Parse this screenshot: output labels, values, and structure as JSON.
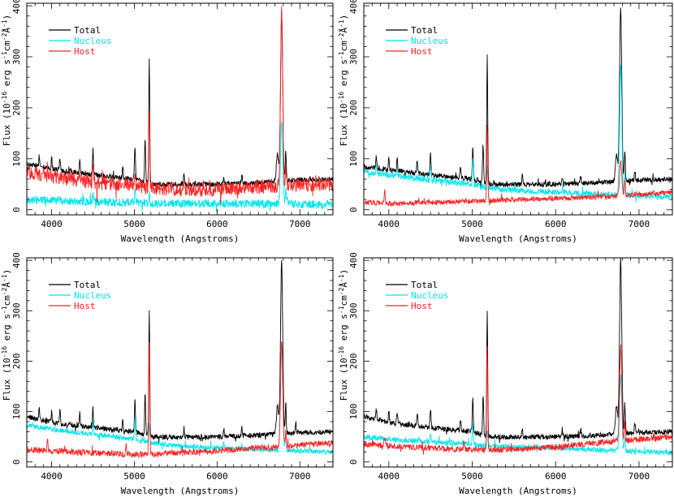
{
  "figure": {
    "background": "#ffffff",
    "colors": {
      "total": "#000000",
      "nucleus": "#00e5ee",
      "host": "#ff2020"
    }
  },
  "chart_data": [
    {
      "type": "line",
      "panel": "top-left",
      "xlabel": "Wavelength (Angstroms)",
      "ylabel": "Flux (10^-16 erg s^-1 cm^-2 Å^-1)",
      "xlim": [
        3700,
        7400
      ],
      "ylim": [
        -10,
        405
      ],
      "xticks": [
        4000,
        5000,
        6000,
        7000
      ],
      "yticks": [
        0,
        100,
        200,
        300,
        400
      ],
      "legend": "top-left",
      "series": [
        {
          "name": "Total",
          "color": "#000000",
          "continuum": [
            [
              3700,
              90
            ],
            [
              4000,
              80
            ],
            [
              4500,
              68
            ],
            [
              5000,
              60
            ],
            [
              5200,
              50
            ],
            [
              5500,
              49
            ],
            [
              6000,
              50
            ],
            [
              6500,
              53
            ],
            [
              6700,
              56
            ],
            [
              7000,
              58
            ],
            [
              7400,
              60
            ]
          ],
          "lines": [
            [
              3850,
              20
            ],
            [
              4000,
              22
            ],
            [
              4100,
              25
            ],
            [
              4340,
              28
            ],
            [
              4500,
              50
            ],
            [
              4860,
              22
            ],
            [
              5007,
              65
            ],
            [
              5130,
              85
            ],
            [
              5180,
              245
            ],
            [
              5600,
              20
            ],
            [
              6080,
              15
            ],
            [
              6300,
              18
            ],
            [
              6730,
              55
            ],
            [
              6780,
              330
            ],
            [
              6830,
              60
            ]
          ],
          "noise": 5
        },
        {
          "name": "Nucleus",
          "color": "#00e5ee",
          "continuum": [
            [
              3700,
              20
            ],
            [
              4000,
              18
            ],
            [
              4500,
              16
            ],
            [
              5000,
              14
            ],
            [
              5500,
              12
            ],
            [
              6000,
              12
            ],
            [
              6500,
              12
            ],
            [
              7000,
              11
            ],
            [
              7400,
              10
            ]
          ],
          "lines": [
            [
              4500,
              15
            ],
            [
              5007,
              25
            ],
            [
              5180,
              20
            ],
            [
              6780,
              160
            ],
            [
              6830,
              30
            ]
          ],
          "noise": 8
        },
        {
          "name": "Host",
          "color": "#ff2020",
          "continuum": [
            [
              3700,
              75
            ],
            [
              4000,
              65
            ],
            [
              4500,
              55
            ],
            [
              5000,
              48
            ],
            [
              5200,
              42
            ],
            [
              5500,
              40
            ],
            [
              6000,
              40
            ],
            [
              6500,
              45
            ],
            [
              6700,
              47
            ],
            [
              7000,
              49
            ],
            [
              7400,
              50
            ]
          ],
          "lines": [
            [
              4500,
              25
            ],
            [
              5007,
              30
            ],
            [
              5180,
              155
            ],
            [
              5600,
              20
            ],
            [
              6780,
              340
            ],
            [
              6830,
              40
            ]
          ],
          "noise": 14
        }
      ]
    },
    {
      "type": "line",
      "panel": "top-right",
      "xlabel": "Wavelength (Angstroms)",
      "ylabel": "Flux (10^-16 erg s^-1 cm^-2 Å^-1)",
      "xlim": [
        3700,
        7400
      ],
      "ylim": [
        -10,
        405
      ],
      "xticks": [
        4000,
        5000,
        6000,
        7000
      ],
      "yticks": [
        0,
        100,
        200,
        300,
        400
      ],
      "legend": "top-left",
      "series": [
        {
          "name": "Total",
          "color": "#000000",
          "continuum": [
            [
              3700,
              85
            ],
            [
              4000,
              78
            ],
            [
              4500,
              68
            ],
            [
              5000,
              60
            ],
            [
              5200,
              50
            ],
            [
              5500,
              49
            ],
            [
              6000,
              50
            ],
            [
              6500,
              53
            ],
            [
              7000,
              58
            ],
            [
              7400,
              60
            ]
          ],
          "lines": [
            [
              3850,
              25
            ],
            [
              4000,
              22
            ],
            [
              4100,
              25
            ],
            [
              4340,
              25
            ],
            [
              4500,
              40
            ],
            [
              4860,
              20
            ],
            [
              5007,
              65
            ],
            [
              5130,
              80
            ],
            [
              5180,
              250
            ],
            [
              5600,
              18
            ],
            [
              6080,
              15
            ],
            [
              6300,
              18
            ],
            [
              6730,
              55
            ],
            [
              6780,
              345
            ],
            [
              6830,
              60
            ],
            [
              6950,
              20
            ]
          ],
          "noise": 5
        },
        {
          "name": "Nucleus",
          "color": "#00e5ee",
          "continuum": [
            [
              3700,
              75
            ],
            [
              4000,
              68
            ],
            [
              4500,
              58
            ],
            [
              5000,
              50
            ],
            [
              5200,
              42
            ],
            [
              5500,
              38
            ],
            [
              6000,
              35
            ],
            [
              6500,
              30
            ],
            [
              7000,
              28
            ],
            [
              7400,
              25
            ]
          ],
          "lines": [
            [
              3850,
              15
            ],
            [
              4100,
              10
            ],
            [
              4500,
              30
            ],
            [
              5007,
              50
            ],
            [
              5180,
              40
            ],
            [
              6080,
              12
            ],
            [
              6780,
              255
            ],
            [
              6830,
              40
            ]
          ],
          "noise": 6
        },
        {
          "name": "Host",
          "color": "#ff2020",
          "continuum": [
            [
              3700,
              15
            ],
            [
              4000,
              12
            ],
            [
              4500,
              14
            ],
            [
              5000,
              17
            ],
            [
              5200,
              18
            ],
            [
              5500,
              20
            ],
            [
              6000,
              22
            ],
            [
              6500,
              25
            ],
            [
              7000,
              30
            ],
            [
              7400,
              35
            ]
          ],
          "lines": [
            [
              3950,
              25
            ],
            [
              5180,
              150
            ],
            [
              6780,
              70
            ],
            [
              6830,
              30
            ]
          ],
          "noise": 5
        }
      ]
    },
    {
      "type": "line",
      "panel": "bottom-left",
      "xlabel": "Wavelength (Angstroms)",
      "ylabel": "Flux (10^-16 erg s^-1 cm^-2 Å^-1)",
      "xlim": [
        3700,
        7400
      ],
      "ylim": [
        -10,
        405
      ],
      "xticks": [
        4000,
        5000,
        6000,
        7000
      ],
      "yticks": [
        0,
        100,
        200,
        300,
        400
      ],
      "legend": "top-left",
      "series": [
        {
          "name": "Total",
          "color": "#000000",
          "continuum": [
            [
              3700,
              90
            ],
            [
              4000,
              78
            ],
            [
              4500,
              68
            ],
            [
              5000,
              60
            ],
            [
              5200,
              50
            ],
            [
              5500,
              49
            ],
            [
              6000,
              50
            ],
            [
              6500,
              53
            ],
            [
              7000,
              58
            ],
            [
              7400,
              60
            ]
          ],
          "lines": [
            [
              3850,
              20
            ],
            [
              4000,
              22
            ],
            [
              4100,
              25
            ],
            [
              4340,
              25
            ],
            [
              4500,
              40
            ],
            [
              4860,
              20
            ],
            [
              5007,
              65
            ],
            [
              5130,
              80
            ],
            [
              5180,
              250
            ],
            [
              5600,
              18
            ],
            [
              6080,
              15
            ],
            [
              6300,
              18
            ],
            [
              6730,
              55
            ],
            [
              6780,
              345
            ],
            [
              6830,
              60
            ],
            [
              6950,
              20
            ]
          ],
          "noise": 5
        },
        {
          "name": "Nucleus",
          "color": "#00e5ee",
          "continuum": [
            [
              3700,
              72
            ],
            [
              4000,
              65
            ],
            [
              4500,
              55
            ],
            [
              5000,
              45
            ],
            [
              5200,
              38
            ],
            [
              5500,
              32
            ],
            [
              6000,
              28
            ],
            [
              6500,
              25
            ],
            [
              7000,
              22
            ],
            [
              7400,
              20
            ]
          ],
          "lines": [
            [
              4500,
              25
            ],
            [
              5007,
              45
            ],
            [
              5180,
              35
            ],
            [
              6080,
              10
            ],
            [
              6780,
              220
            ],
            [
              6830,
              35
            ]
          ],
          "noise": 5
        },
        {
          "name": "Host",
          "color": "#ff2020",
          "continuum": [
            [
              3700,
              25
            ],
            [
              4000,
              22
            ],
            [
              4500,
              18
            ],
            [
              5000,
              15
            ],
            [
              5200,
              15
            ],
            [
              5500,
              18
            ],
            [
              6000,
              22
            ],
            [
              6500,
              28
            ],
            [
              7000,
              33
            ],
            [
              7400,
              38
            ]
          ],
          "lines": [
            [
              3950,
              20
            ],
            [
              4900,
              20
            ],
            [
              5180,
              220
            ],
            [
              6780,
              210
            ],
            [
              6830,
              30
            ]
          ],
          "noise": 6
        }
      ]
    },
    {
      "type": "line",
      "panel": "bottom-right",
      "xlabel": "Wavelength (Angstroms)",
      "ylabel": "Flux (10^-16 erg s^-1 cm^-2 Å^-1)",
      "xlim": [
        3700,
        7400
      ],
      "ylim": [
        -10,
        405
      ],
      "xticks": [
        4000,
        5000,
        6000,
        7000
      ],
      "yticks": [
        0,
        100,
        200,
        300,
        400
      ],
      "legend": "top-left",
      "series": [
        {
          "name": "Total",
          "color": "#000000",
          "continuum": [
            [
              3700,
              90
            ],
            [
              4000,
              78
            ],
            [
              4500,
              68
            ],
            [
              5000,
              60
            ],
            [
              5200,
              50
            ],
            [
              5500,
              49
            ],
            [
              6000,
              50
            ],
            [
              6500,
              53
            ],
            [
              7000,
              58
            ],
            [
              7400,
              60
            ]
          ],
          "lines": [
            [
              3850,
              20
            ],
            [
              4000,
              22
            ],
            [
              4100,
              25
            ],
            [
              4340,
              25
            ],
            [
              4500,
              40
            ],
            [
              4860,
              20
            ],
            [
              5007,
              65
            ],
            [
              5130,
              80
            ],
            [
              5180,
              250
            ],
            [
              5600,
              18
            ],
            [
              6080,
              15
            ],
            [
              6300,
              18
            ],
            [
              6730,
              55
            ],
            [
              6780,
              345
            ],
            [
              6830,
              60
            ],
            [
              6950,
              20
            ]
          ],
          "noise": 5
        },
        {
          "name": "Nucleus",
          "color": "#00e5ee",
          "continuum": [
            [
              3700,
              50
            ],
            [
              4000,
              45
            ],
            [
              4500,
              40
            ],
            [
              5000,
              35
            ],
            [
              5200,
              32
            ],
            [
              5500,
              30
            ],
            [
              6000,
              28
            ],
            [
              6500,
              24
            ],
            [
              7000,
              20
            ],
            [
              7400,
              18
            ]
          ],
          "lines": [
            [
              4500,
              20
            ],
            [
              5007,
              40
            ],
            [
              5180,
              30
            ],
            [
              6780,
              150
            ],
            [
              6830,
              30
            ]
          ],
          "noise": 5
        },
        {
          "name": "Host",
          "color": "#ff2020",
          "continuum": [
            [
              3700,
              35
            ],
            [
              4000,
              32
            ],
            [
              4500,
              28
            ],
            [
              5000,
              25
            ],
            [
              5200,
              23
            ],
            [
              5500,
              25
            ],
            [
              6000,
              30
            ],
            [
              6500,
              38
            ],
            [
              7000,
              45
            ],
            [
              7400,
              50
            ]
          ],
          "lines": [
            [
              3950,
              20
            ],
            [
              4900,
              15
            ],
            [
              5180,
              200
            ],
            [
              6780,
              190
            ],
            [
              6830,
              35
            ]
          ],
          "noise": 6
        }
      ]
    }
  ]
}
